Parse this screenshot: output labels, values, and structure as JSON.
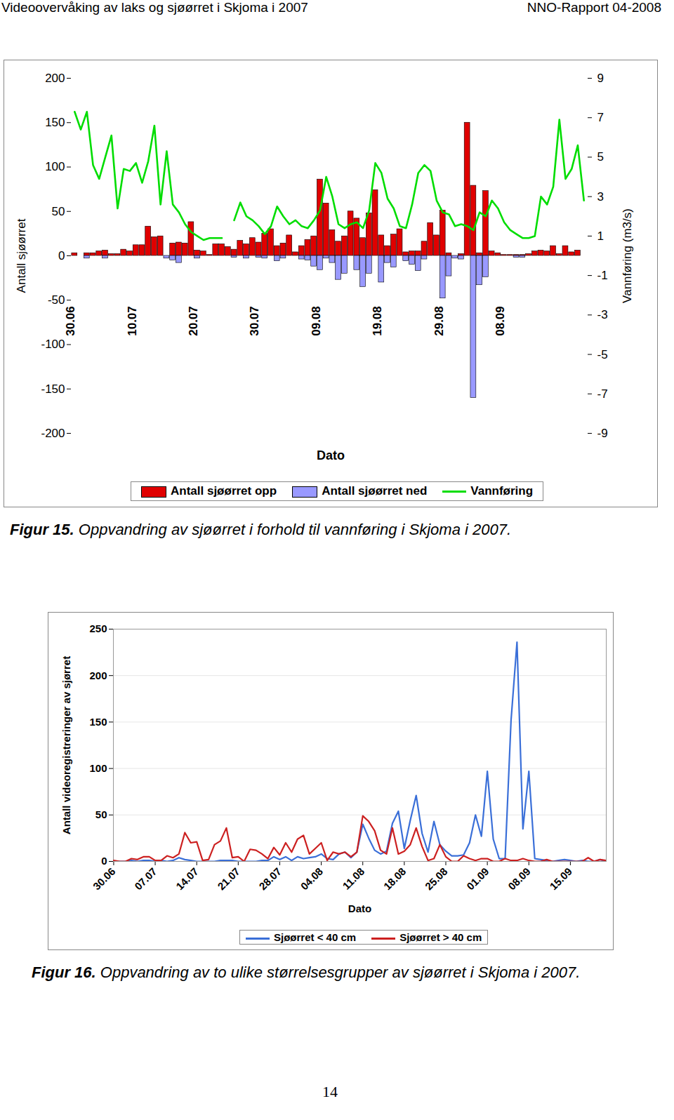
{
  "header": {
    "left": "Videoovervåking av laks og sjøørret i Skjoma i 2007",
    "right": "NNO-Rapport 04-2008"
  },
  "chart_data": [
    {
      "type": "bar",
      "figure": "Figur 15.",
      "title": "Oppvandring av sjøørret i forhold til vannføring i Skjoma i 2007.",
      "x_label": "Dato",
      "y_label": "Antall sjøørret",
      "y2_label": "Vannføring (m3/s)",
      "categories": [
        "30.06",
        null,
        null,
        null,
        null,
        null,
        null,
        null,
        null,
        null,
        "10.07",
        null,
        null,
        null,
        null,
        null,
        null,
        null,
        null,
        null,
        "20.07",
        null,
        null,
        null,
        null,
        null,
        null,
        null,
        null,
        null,
        "30.07",
        null,
        null,
        null,
        null,
        null,
        null,
        null,
        null,
        null,
        "09.08",
        null,
        null,
        null,
        null,
        null,
        null,
        null,
        null,
        null,
        "19.08",
        null,
        null,
        null,
        null,
        null,
        null,
        null,
        null,
        null,
        "29.08",
        null,
        null,
        null,
        null,
        null,
        null,
        null,
        null,
        null,
        "08.09",
        null,
        null,
        null,
        null,
        null,
        null,
        null,
        null,
        null,
        null,
        null,
        null,
        null
      ],
      "ylim": [
        -200,
        200
      ],
      "yticks": [
        -200,
        -150,
        -100,
        -50,
        0,
        50,
        100,
        150,
        200
      ],
      "y2lim": [
        -9,
        9
      ],
      "y2ticks": [
        -9,
        -7,
        -5,
        -3,
        -1,
        1,
        3,
        5,
        7,
        9
      ],
      "legend": "bottom",
      "series": [
        {
          "name": "Antall sjøørret opp",
          "color": "#e00000",
          "type": "bar",
          "values": [
            3,
            0,
            3,
            3,
            5,
            6,
            2,
            2,
            7,
            5,
            12,
            12,
            33,
            21,
            22,
            0,
            14,
            15,
            14,
            38,
            6,
            5,
            1,
            13,
            13,
            10,
            7,
            17,
            13,
            20,
            15,
            25,
            30,
            11,
            14,
            23,
            4,
            11,
            18,
            22,
            86,
            59,
            29,
            16,
            22,
            50,
            42,
            20,
            48,
            74,
            23,
            11,
            24,
            30,
            4,
            5,
            5,
            16,
            37,
            23,
            51,
            3,
            0,
            2,
            150,
            79,
            3,
            73,
            5,
            3,
            1,
            1,
            1,
            1,
            2,
            5,
            6,
            5,
            11,
            2,
            11,
            4,
            6,
            0
          ]
        },
        {
          "name": "Antall sjøørret ned",
          "color": "#9999ff",
          "type": "bar",
          "values": [
            0,
            0,
            -3,
            0,
            0,
            -3,
            0,
            0,
            0,
            0,
            0,
            0,
            0,
            0,
            0,
            -3,
            -5,
            -8,
            0,
            0,
            -3,
            0,
            0,
            0,
            0,
            0,
            -2,
            0,
            -3,
            0,
            -2,
            -3,
            0,
            -6,
            -3,
            0,
            0,
            -4,
            -5,
            -12,
            -16,
            -3,
            -8,
            -27,
            -20,
            0,
            -16,
            -35,
            -20,
            0,
            -30,
            -8,
            -13,
            0,
            -6,
            -10,
            -17,
            -4,
            0,
            0,
            -48,
            -23,
            -3,
            -4,
            0,
            -160,
            -33,
            -24,
            0,
            0,
            0,
            0,
            -2,
            -2,
            0,
            0,
            0,
            0,
            0,
            0,
            0,
            0,
            0,
            0
          ]
        },
        {
          "name": "Vannføring",
          "color": "#00dd00",
          "type": "line",
          "axis": "y2",
          "values": [
            7.3,
            6.4,
            7.3,
            4.6,
            3.9,
            5.0,
            6.1,
            2.4,
            4.4,
            4.3,
            4.7,
            3.7,
            4.8,
            6.6,
            2.6,
            5.3,
            2.6,
            2.2,
            1.6,
            1.2,
            1.0,
            0.8,
            0.9,
            0.9,
            0.9,
            null,
            1.8,
            2.7,
            2.0,
            1.8,
            1.5,
            1.1,
            1.5,
            2.5,
            2.0,
            1.6,
            1.8,
            1.5,
            1.4,
            1.8,
            2.3,
            4.0,
            3.0,
            1.6,
            1.4,
            1.6,
            1.7,
            1.4,
            2.3,
            4.7,
            4.2,
            2.9,
            2.4,
            1.5,
            1.4,
            2.6,
            4.2,
            4.6,
            4.3,
            2.8,
            2.2,
            2.1,
            1.5,
            1.6,
            1.5,
            1.3,
            2.2,
            2.0,
            2.8,
            2.4,
            1.7,
            1.3,
            1.1,
            0.9,
            0.9,
            1.0,
            3.0,
            2.6,
            3.5,
            6.9,
            3.9,
            4.4,
            5.6,
            2.8
          ]
        }
      ]
    },
    {
      "type": "line",
      "figure": "Figur 16.",
      "title": "Oppvandring av to ulike størrelsesgrupper av sjøørret i Skjoma i 2007.",
      "x_label": "Dato",
      "y_label": "Antall videoregistreringer av sjørret",
      "categories": [
        "30.06",
        null,
        null,
        null,
        null,
        null,
        null,
        "07.07",
        null,
        null,
        null,
        null,
        null,
        null,
        "14.07",
        null,
        null,
        null,
        null,
        null,
        null,
        "21.07",
        null,
        null,
        null,
        null,
        null,
        null,
        "28.07",
        null,
        null,
        null,
        null,
        null,
        null,
        "04.08",
        null,
        null,
        null,
        null,
        null,
        null,
        "11.08",
        null,
        null,
        null,
        null,
        null,
        null,
        "18.08",
        null,
        null,
        null,
        null,
        null,
        null,
        "25.08",
        null,
        null,
        null,
        null,
        null,
        null,
        "01.09",
        null,
        null,
        null,
        null,
        null,
        null,
        "08.09",
        null,
        null,
        null,
        null,
        null,
        null,
        "15.09",
        null,
        null,
        null,
        null,
        null,
        null
      ],
      "ylim": [
        0,
        250
      ],
      "yticks": [
        0,
        50,
        100,
        150,
        200,
        250
      ],
      "grid": true,
      "legend": "bottom",
      "series": [
        {
          "name": "Sjøørret < 40 cm",
          "color": "#3a6fd8",
          "values": [
            0,
            0,
            0,
            1,
            0,
            1,
            1,
            0,
            1,
            0,
            1,
            4,
            2,
            1,
            0,
            0,
            0,
            0,
            1,
            1,
            1,
            0,
            0,
            0,
            0,
            1,
            1,
            5,
            2,
            5,
            1,
            5,
            3,
            4,
            5,
            8,
            3,
            2,
            8,
            10,
            4,
            10,
            40,
            25,
            12,
            8,
            11,
            41,
            54,
            14,
            44,
            71,
            30,
            10,
            43,
            18,
            11,
            6,
            6,
            7,
            20,
            50,
            27,
            97,
            24,
            3,
            3,
            152,
            236,
            35,
            97,
            3,
            2,
            1,
            0,
            1,
            2,
            1,
            0,
            1,
            0,
            0,
            2,
            0
          ]
        },
        {
          "name": "Sjøørret > 40 cm",
          "color": "#cc2020",
          "values": [
            1,
            0,
            0,
            3,
            2,
            5,
            5,
            1,
            1,
            6,
            4,
            8,
            31,
            20,
            21,
            1,
            2,
            18,
            22,
            36,
            4,
            5,
            0,
            13,
            12,
            8,
            3,
            15,
            7,
            20,
            10,
            24,
            28,
            8,
            14,
            20,
            1,
            10,
            8,
            10,
            5,
            10,
            49,
            43,
            33,
            12,
            8,
            36,
            8,
            11,
            18,
            36,
            16,
            1,
            3,
            18,
            5,
            0,
            0,
            6,
            3,
            1,
            3,
            3,
            0,
            0,
            3,
            1,
            1,
            3,
            1,
            0,
            0,
            2,
            0,
            0,
            0,
            0,
            0,
            0,
            4,
            0,
            2,
            1
          ]
        }
      ]
    }
  ],
  "page_number": 14
}
